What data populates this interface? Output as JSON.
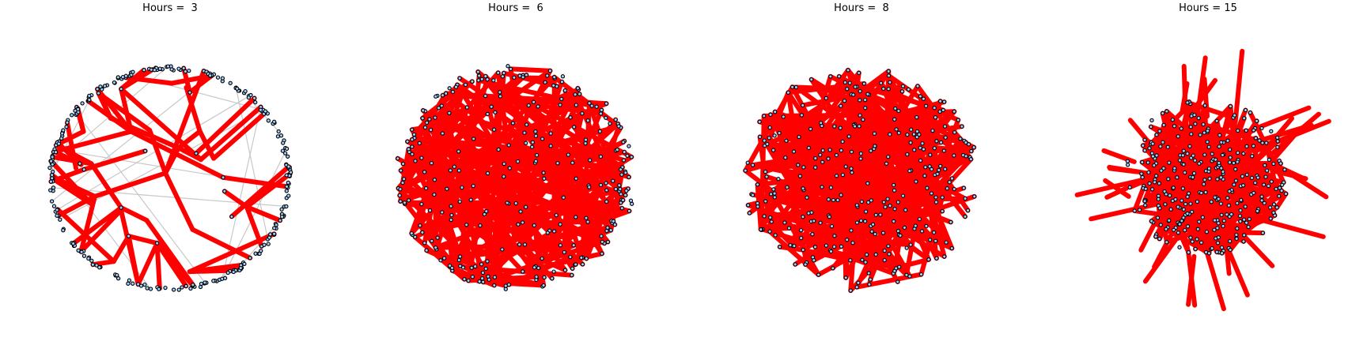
{
  "panels": [
    {
      "title": "Hours =  3",
      "mode": "ring",
      "nodes": 260,
      "edges": 70,
      "seed": 3
    },
    {
      "title": "Hours =  6",
      "mode": "dense",
      "nodes": 300,
      "edges": 210,
      "seed": 6
    },
    {
      "title": "Hours =  8",
      "mode": "denser",
      "nodes": 320,
      "edges": 320,
      "seed": 8
    },
    {
      "title": "Hours = 15",
      "mode": "spiky",
      "nodes": 320,
      "edges": 260,
      "seed": 15
    }
  ],
  "colors": {
    "edge": "#ff0000",
    "node_fill": "#9fd0ff",
    "node_stroke": "#000000",
    "ring_edge": "#c8c8c8"
  }
}
